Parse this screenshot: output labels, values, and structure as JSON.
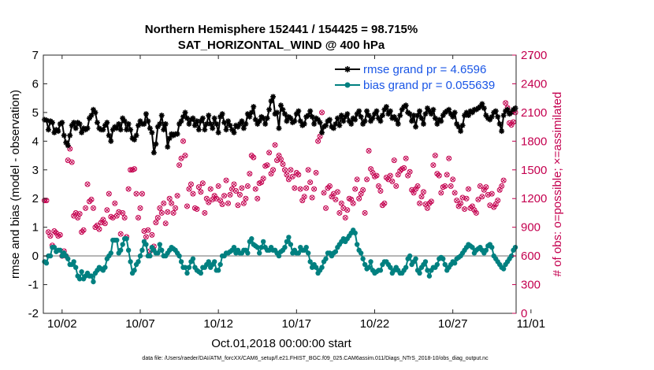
{
  "chart_data": {
    "type": "line",
    "title_line1": "Northern Hemisphere 152441 / 154425 = 98.715%",
    "title_line2": "SAT_HORIZONTAL_WIND @ 400 hPa",
    "xlabel": "Oct.01,2018 00:00:00 start",
    "ylabel_left": "rmse and bias (model - observation)",
    "ylabel_right": "# of obs: o=possible; ×=assimilated",
    "footer": "data file: /Users/raeder/DAI/ATM_forcXX/CAM6_setup/f.e21.FHIST_BGC.f09_025.CAM6assim.011/Diags_NTrS_2018-10/obs_diag_output.nc",
    "xlim": [
      0.8,
      31.05
    ],
    "ylim_left": [
      -2,
      7
    ],
    "ylim_right": [
      0,
      2700
    ],
    "x_ticks": [
      2,
      7,
      12,
      17,
      22,
      27,
      32
    ],
    "x_tick_labels": [
      "10/02",
      "10/07",
      "10/12",
      "10/17",
      "10/22",
      "10/27",
      "11/01"
    ],
    "y_ticks_left": [
      "-2",
      "-1",
      "0",
      "1",
      "2",
      "3",
      "4",
      "5",
      "6",
      "7"
    ],
    "y_ticks_right": [
      "0",
      "300",
      "600",
      "900",
      "1200",
      "1500",
      "1800",
      "2100",
      "2400",
      "2700"
    ],
    "zero_line": 0,
    "legend": {
      "position": "top-right",
      "entries": [
        "rmse grand pr = 4.6596",
        "bias grand pr = 0.055639"
      ]
    },
    "colors": {
      "rmse": "#000000",
      "bias": "#008080",
      "obs": "#c4004f",
      "zero": "#b3b3b3",
      "legend_text": "#1a56e6"
    },
    "x_start": 0.875,
    "x_step": 0.125,
    "series": [
      {
        "name": "rmse",
        "axis": "left",
        "values": [
          4.75,
          4.73,
          4.4,
          4.7,
          4.65,
          4.3,
          4.4,
          4.35,
          4.6,
          4.65,
          4.2,
          3.95,
          3.85,
          4.2,
          4.55,
          4.65,
          4.45,
          4.65,
          4.6,
          4.3,
          4.45,
          4.4,
          4.45,
          4.8,
          4.9,
          5.1,
          5.0,
          4.65,
          4.45,
          4.4,
          4.4,
          4.55,
          4.65,
          4.2,
          4.0,
          4.4,
          4.5,
          4.45,
          4.6,
          4.4,
          4.8,
          4.7,
          4.4,
          4.6,
          4.4,
          4.1,
          4.05,
          4.2,
          4.55,
          4.7,
          4.6,
          4.6,
          4.95,
          4.7,
          4.45,
          4.3,
          3.6,
          3.9,
          4.5,
          4.6,
          4.9,
          4.4,
          4.6,
          3.8,
          4.1,
          4.25,
          4.2,
          4.25,
          4.25,
          4.6,
          4.7,
          4.85,
          5.0,
          4.8,
          4.6,
          4.75,
          4.8,
          4.55,
          4.7,
          4.4,
          4.7,
          4.8,
          4.4,
          4.6,
          4.9,
          4.6,
          4.45,
          4.8,
          4.6,
          4.3,
          4.85,
          4.95,
          4.65,
          4.4,
          4.7,
          4.55,
          4.4,
          4.3,
          4.55,
          4.5,
          4.6,
          4.7,
          4.45,
          4.6,
          4.95,
          4.85,
          5.0,
          5.2,
          4.75,
          4.6,
          4.7,
          4.85,
          4.8,
          4.6,
          4.8,
          5.1,
          5.4,
          5.55,
          4.95,
          5.0,
          4.45,
          5.25,
          5.1,
          4.95,
          4.7,
          4.85,
          4.8,
          4.65,
          4.7,
          4.95,
          5.05,
          4.7,
          4.55,
          4.6,
          4.85,
          4.9,
          5.05,
          4.85,
          4.6,
          4.8,
          4.75,
          4.65,
          4.3,
          4.5,
          4.55,
          4.7,
          4.75,
          4.5,
          4.45,
          4.6,
          4.8,
          4.55,
          4.9,
          4.7,
          4.85,
          4.95,
          4.7,
          4.6,
          4.8,
          4.75,
          4.95,
          5.05,
          4.85,
          4.6,
          4.7,
          5.05,
          4.9,
          4.7,
          4.8,
          4.95,
          5.05,
          4.8,
          4.7,
          4.9,
          5.1,
          5.2,
          4.95,
          5.05,
          4.8,
          4.85,
          4.75,
          4.6,
          4.9,
          5.1,
          5.2,
          5.25,
          5.0,
          4.95,
          4.7,
          4.9,
          4.5,
          4.9,
          5.05,
          4.8,
          4.6,
          4.95,
          5.15,
          5.05,
          4.95,
          5.1,
          4.8,
          4.6,
          4.75,
          4.7,
          4.9,
          5.0,
          5.05,
          5.1,
          4.95,
          4.85,
          5.0,
          4.6,
          4.5,
          4.35,
          4.55,
          4.9,
          5.0,
          4.9,
          5.05,
          5.0,
          5.1,
          5.1,
          5.15,
          5.2,
          5.3,
          5.15,
          4.9,
          4.8,
          4.75,
          4.85,
          5.0,
          5.05,
          4.85,
          4.6,
          4.35,
          4.9,
          5.05,
          5.1,
          4.95,
          5.0,
          5.1,
          5.15,
          5.2,
          5.3,
          5.15,
          5.0,
          4.7,
          4.55,
          4.75,
          4.85,
          4.7,
          4.6,
          4.45,
          4.85,
          5.05,
          5.0,
          4.85,
          4.7,
          4.95,
          5.05,
          5.1,
          5.2,
          5.15
        ]
      },
      {
        "name": "bias",
        "axis": "left",
        "values": [
          -0.2,
          -0.25,
          0.0,
          0.0,
          0.3,
          0.3,
          0.15,
          0.2,
          0.2,
          0.0,
          0.1,
          0.0,
          -0.1,
          -0.3,
          -0.3,
          -0.2,
          -0.4,
          -0.7,
          -0.8,
          -0.55,
          -0.8,
          -0.7,
          -0.6,
          -0.7,
          -0.7,
          -0.9,
          -0.6,
          -0.5,
          -0.4,
          -0.45,
          -0.5,
          -0.4,
          -0.1,
          0.0,
          0.1,
          0.55,
          0.55,
          0.55,
          0.1,
          0.2,
          0.4,
          0.6,
          0.6,
          0.2,
          -0.2,
          -0.6,
          -0.5,
          -0.3,
          -0.2,
          0.0,
          0.2,
          0.5,
          0.4,
          0.0,
          0.0,
          0.3,
          0.2,
          0.1,
          0.1,
          0.4,
          0.2,
          0.0,
          0.0,
          0.1,
          0.2,
          0.3,
          0.25,
          0.2,
          0.1,
          0.0,
          -0.2,
          -0.4,
          -0.4,
          -0.6,
          -0.4,
          -0.2,
          -0.1,
          -0.4,
          -0.5,
          -0.55,
          -0.6,
          -0.4,
          -0.4,
          -0.3,
          -0.2,
          -0.4,
          -0.3,
          -0.2,
          -0.5,
          -0.5,
          -0.3,
          0.0,
          0.0,
          0.1,
          0.1,
          0.15,
          0.2,
          0.3,
          0.1,
          0.2,
          0.1,
          0.1,
          0.2,
          0.2,
          0.1,
          0.5,
          0.6,
          0.4,
          0.35,
          0.3,
          0.1,
          0.3,
          0.5,
          0.3,
          0.2,
          0.2,
          0.3,
          0.2,
          0.2,
          0.1,
          0.0,
          0.15,
          0.2,
          0.3,
          0.5,
          0.65,
          0.4,
          0.1,
          0.2,
          0.1,
          0.1,
          0.3,
          0.2,
          0.2,
          0.3,
          0.1,
          -0.2,
          -0.4,
          -0.3,
          -0.4,
          -0.6,
          -0.5,
          -0.4,
          -0.2,
          -0.1,
          0.1,
          0.1,
          0.0,
          0.1,
          0.15,
          0.3,
          0.4,
          0.5,
          0.6,
          0.5,
          0.6,
          0.7,
          0.8,
          0.9,
          0.8,
          0.4,
          0.2,
          0.1,
          -0.1,
          -0.3,
          -0.45,
          -0.4,
          -0.2,
          -0.5,
          -0.6,
          -0.55,
          -0.5,
          -0.5,
          -0.3,
          -0.2,
          -0.2,
          -0.3,
          -0.4,
          -0.6,
          -0.5,
          -0.4,
          -0.5,
          -0.6,
          -0.6,
          -0.5,
          -0.4,
          -0.1,
          0.0,
          -0.3,
          -0.2,
          -0.1,
          -0.5,
          -0.6,
          -0.4,
          -0.3,
          -0.2,
          -0.5,
          -0.7,
          -0.5,
          -0.4,
          -0.4,
          -0.3,
          -0.1,
          -0.05,
          -0.1,
          -0.3,
          -0.5,
          -0.4,
          -0.3,
          -0.2,
          -0.25,
          -0.1,
          -0.05,
          0.0,
          0.1,
          0.2,
          0.3,
          0.4,
          0.35,
          0.3,
          0.1,
          0.2,
          0.25,
          0.3,
          0.2,
          0.1,
          0.2,
          0.35,
          0.4,
          0.3,
          0.0,
          -0.1,
          -0.2,
          -0.3,
          -0.4,
          -0.45,
          -0.3,
          -0.2,
          -0.1,
          0.0,
          0.2,
          0.3,
          0.1,
          0.0,
          -0.05,
          -0.2,
          -0.3,
          -0.1,
          -0.2,
          -0.25,
          -0.1,
          0.0,
          0.1,
          0.2,
          0.3,
          0.4,
          0.5,
          0.3,
          0.1,
          0.0,
          0.2,
          0.4,
          0.6,
          0.75,
          0.7,
          0.6,
          0.65,
          0.7
        ]
      },
      {
        "name": "obs possible / assimilated",
        "axis": "right",
        "values": [
          1180,
          1180,
          850,
          810,
          710,
          860,
          840,
          810,
          820,
          600,
          650,
          600,
          1600,
          1720,
          1580,
          1020,
          1050,
          1000,
          1040,
          850,
          870,
          1100,
          1350,
          1170,
          1190,
          1100,
          900,
          920,
          880,
          950,
          980,
          940,
          1080,
          1250,
          1010,
          1000,
          1150,
          1020,
          1060,
          830,
          1050,
          1000,
          800,
          1300,
          1500,
          1500,
          1510,
          1250,
          1000,
          1100,
          1250,
          860,
          800,
          870,
          650,
          820,
          700,
          950,
          1000,
          1100,
          1050,
          1150,
          940,
          1060,
          1200,
          1150,
          1050,
          1100,
          1230,
          1550,
          1620,
          1800,
          1650,
          1120,
          1300,
          1350,
          1250,
          1100,
          1090,
          1320,
          1270,
          1360,
          1050,
          1200,
          1160,
          1300,
          1190,
          1230,
          1200,
          1330,
          1180,
          1140,
          1230,
          1390,
          1150,
          1240,
          1300,
          1350,
          1280,
          1130,
          1240,
          1310,
          1150,
          1200,
          1330,
          1460,
          1650,
          1630,
          1300,
          1200,
          1360,
          1370,
          1410,
          1540,
          1550,
          1680,
          1460,
          1500,
          1760,
          1600,
          1650,
          1610,
          1560,
          1500,
          1450,
          1400,
          1500,
          1430,
          1310,
          1470,
          1450,
          1300,
          1180,
          1220,
          1310,
          1500,
          1370,
          1210,
          1300,
          1470,
          1800,
          1850,
          2100,
          1260,
          1100,
          1310,
          1330,
          1220,
          1250,
          1190,
          1270,
          1050,
          1150,
          1100,
          1000,
          1080,
          1200,
          1190,
          1150,
          1300,
          1400,
          1200,
          1250,
          1290,
          1050,
          1400,
          1700,
          1510,
          1470,
          1430,
          1440,
          1330,
          1280,
          1130,
          1150,
          1420,
          1400,
          1440,
          1380,
          1600,
          1330,
          1450,
          1490,
          1510,
          1520,
          1620,
          1440,
          1480,
          1290,
          1260,
          1300,
          1330,
          1150,
          1220,
          1270,
          1140,
          1100,
          1150,
          1170,
          1550,
          1650,
          1460,
          1440,
          1260,
          1320,
          1330,
          1450,
          1620,
          1330,
          1400,
          1260,
          1180,
          1120,
          1150,
          1210,
          1090,
          1200,
          1300,
          1100,
          1120,
          1080,
          1050,
          1190,
          1330,
          1220,
          1290,
          1320,
          1240,
          1130,
          1250,
          1110,
          1140,
          1180,
          1290,
          1330,
          1390,
          2200,
          2150,
          1990,
          1970,
          2000,
          2100,
          1850,
          1400,
          1440,
          1130,
          1180,
          1220,
          1300,
          1130,
          1140,
          1160,
          1270,
          1360,
          1400,
          1500,
          1450,
          1380,
          1150,
          1060,
          950,
          1110,
          1150,
          1310,
          1300,
          1380,
          1420,
          1350,
          1310,
          1270,
          1240,
          1350,
          1150,
          1180,
          1100,
          1050,
          0,
          1000,
          950,
          1050,
          1150,
          1250,
          1320
        ]
      }
    ]
  }
}
